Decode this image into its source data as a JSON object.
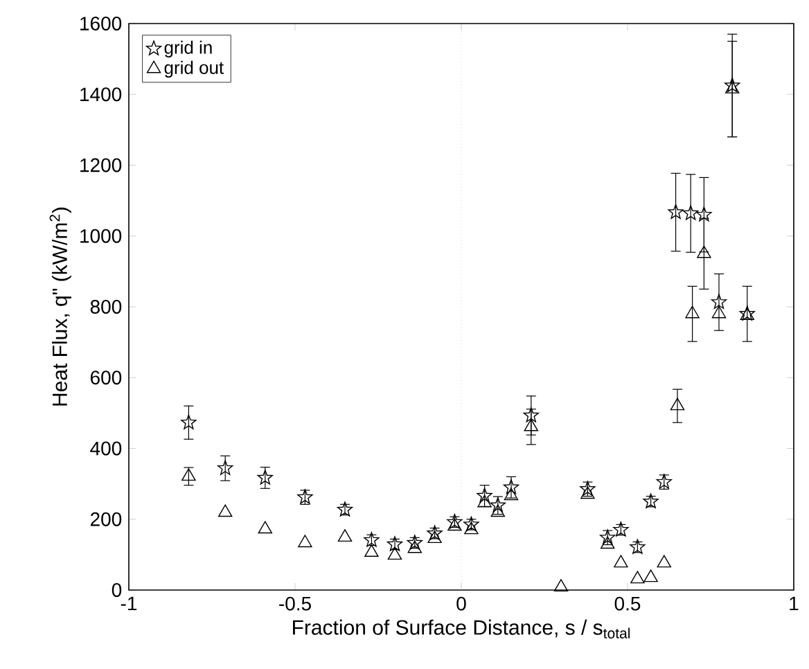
{
  "chart_data": {
    "type": "scatter",
    "xlabel": "Fraction of Surface Distance, s / s$_{total}$",
    "ylabel": "Heat Flux, q\" (kW/m$^{2}$)",
    "xlim": [
      -1,
      1
    ],
    "ylim": [
      0,
      1600
    ],
    "xticks": [
      -1,
      -0.5,
      0,
      0.5,
      1
    ],
    "yticks": [
      0,
      200,
      400,
      600,
      800,
      1000,
      1200,
      1400,
      1600
    ],
    "legend": "top left",
    "grid": false,
    "ref_lines": [
      {
        "axis": "x",
        "value": 0,
        "line_style": "dotted",
        "color": "#b0b0b0"
      }
    ],
    "series": [
      {
        "name": "grid in",
        "color": "#000000",
        "marker": "star",
        "x": [
          -0.82,
          -0.71,
          -0.59,
          -0.47,
          -0.35,
          -0.27,
          -0.2,
          -0.14,
          -0.08,
          -0.02,
          0.03,
          0.07,
          0.11,
          0.15,
          0.21,
          0.38,
          0.44,
          0.48,
          0.53,
          0.57,
          0.61,
          0.645,
          0.69,
          0.73,
          0.775,
          0.815,
          0.86
        ],
        "values": [
          473,
          344,
          317,
          262,
          227,
          141,
          129,
          133,
          160,
          192,
          185,
          266,
          239,
          290,
          493,
          285,
          148,
          170,
          121,
          250,
          305,
          1067,
          1064,
          1060,
          813,
          1425,
          780
        ],
        "errors": [
          47,
          35,
          30,
          20,
          15,
          15,
          15,
          15,
          15,
          15,
          15,
          30,
          25,
          30,
          55,
          20,
          20,
          15,
          15,
          15,
          20,
          110,
          110,
          105,
          80,
          145,
          78
        ]
      },
      {
        "name": "grid out",
        "color": "#000000",
        "marker": "triangle",
        "x": [
          -0.82,
          -0.71,
          -0.59,
          -0.47,
          -0.35,
          -0.27,
          -0.2,
          -0.14,
          -0.08,
          -0.02,
          0.03,
          0.07,
          0.11,
          0.15,
          0.21,
          0.3,
          0.38,
          0.44,
          0.48,
          0.53,
          0.57,
          0.61,
          0.65,
          0.695,
          0.73,
          0.775,
          0.815,
          0.86
        ],
        "values": [
          321,
          219,
          172,
          133,
          149,
          106,
          98,
          117,
          145,
          180,
          170,
          246,
          219,
          266,
          461,
          8,
          270,
          129,
          76,
          31,
          35,
          76,
          520,
          780,
          950,
          780,
          1415,
          775
        ],
        "errors": [
          25,
          null,
          null,
          null,
          null,
          null,
          null,
          null,
          null,
          null,
          null,
          null,
          null,
          null,
          50,
          null,
          null,
          null,
          null,
          null,
          null,
          null,
          47,
          78,
          100,
          null,
          135,
          null
        ]
      }
    ]
  }
}
